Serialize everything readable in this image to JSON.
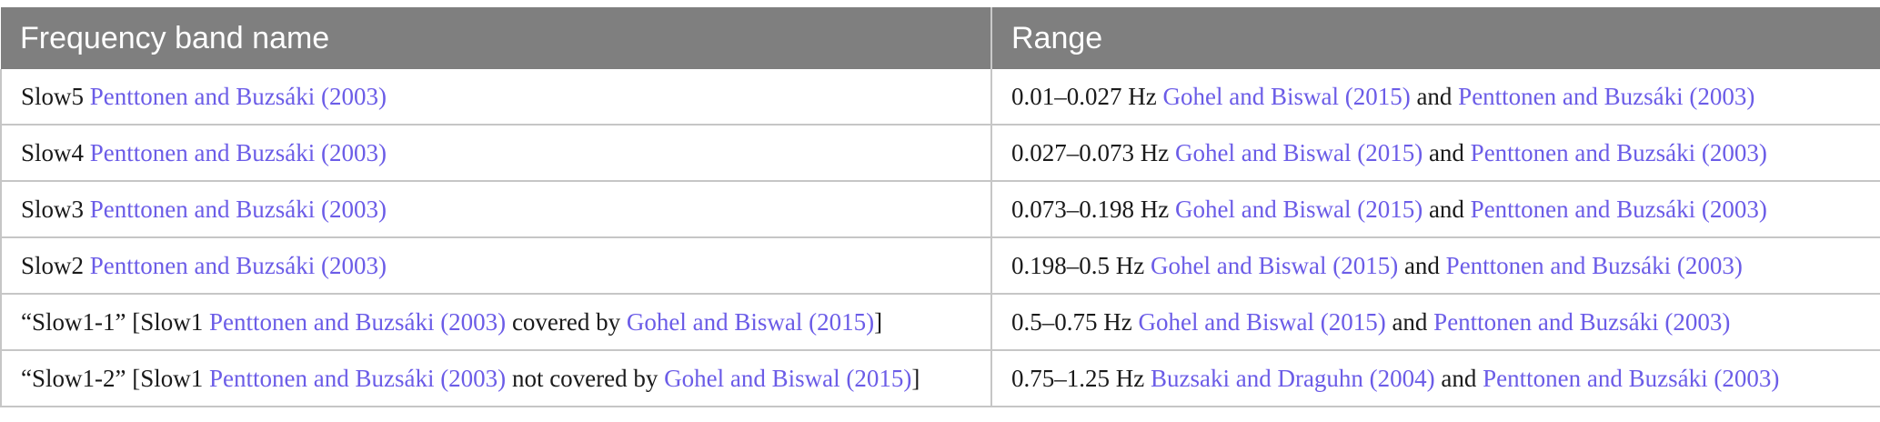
{
  "table": {
    "headers": [
      "Frequency band name",
      "Range"
    ],
    "rows": [
      {
        "band": [
          {
            "t": "Slow5 "
          },
          {
            "t": "Penttonen and Buzsáki (2003)",
            "ref": true
          }
        ],
        "range": [
          {
            "t": "0.01–0.027 Hz "
          },
          {
            "t": "Gohel and Biswal (2015)",
            "ref": true
          },
          {
            "t": " and "
          },
          {
            "t": "Penttonen and Buzsáki (2003)",
            "ref": true
          }
        ]
      },
      {
        "band": [
          {
            "t": "Slow4 "
          },
          {
            "t": "Penttonen and Buzsáki (2003)",
            "ref": true
          }
        ],
        "range": [
          {
            "t": "0.027–0.073 Hz "
          },
          {
            "t": "Gohel and Biswal (2015)",
            "ref": true
          },
          {
            "t": " and "
          },
          {
            "t": "Penttonen and Buzsáki (2003)",
            "ref": true
          }
        ]
      },
      {
        "band": [
          {
            "t": "Slow3 "
          },
          {
            "t": "Penttonen and Buzsáki (2003)",
            "ref": true
          }
        ],
        "range": [
          {
            "t": "0.073–0.198 Hz "
          },
          {
            "t": "Gohel and Biswal (2015)",
            "ref": true
          },
          {
            "t": " and "
          },
          {
            "t": "Penttonen and Buzsáki (2003)",
            "ref": true
          }
        ]
      },
      {
        "band": [
          {
            "t": "Slow2 "
          },
          {
            "t": "Penttonen and Buzsáki (2003)",
            "ref": true
          }
        ],
        "range": [
          {
            "t": "0.198–0.5 Hz "
          },
          {
            "t": "Gohel and Biswal (2015)",
            "ref": true
          },
          {
            "t": " and "
          },
          {
            "t": "Penttonen and Buzsáki (2003)",
            "ref": true
          }
        ]
      },
      {
        "band": [
          {
            "t": "“Slow1-1” [Slow1 "
          },
          {
            "t": "Penttonen and Buzsáki (2003)",
            "ref": true
          },
          {
            "t": " covered by "
          },
          {
            "t": "Gohel and Biswal (2015)",
            "ref": true
          },
          {
            "t": "]"
          }
        ],
        "range": [
          {
            "t": "0.5–0.75 Hz "
          },
          {
            "t": "Gohel and Biswal (2015)",
            "ref": true
          },
          {
            "t": " and "
          },
          {
            "t": "Penttonen and Buzsáki (2003)",
            "ref": true
          }
        ]
      },
      {
        "band": [
          {
            "t": "“Slow1-2” [Slow1 "
          },
          {
            "t": "Penttonen and Buzsáki (2003)",
            "ref": true
          },
          {
            "t": " not covered by "
          },
          {
            "t": "Gohel and Biswal (2015)",
            "ref": true
          },
          {
            "t": "]"
          }
        ],
        "range": [
          {
            "t": "0.75–1.25 Hz "
          },
          {
            "t": "Buzsaki and Draguhn (2004)",
            "ref": true
          },
          {
            "t": " and "
          },
          {
            "t": "Penttonen and Buzsáki (2003)",
            "ref": true
          }
        ]
      }
    ]
  },
  "colors": {
    "header_bg": "#7f7f7f",
    "header_text": "#ffffff",
    "link": "#6b5ce7",
    "grid": "#c6c6c6"
  }
}
